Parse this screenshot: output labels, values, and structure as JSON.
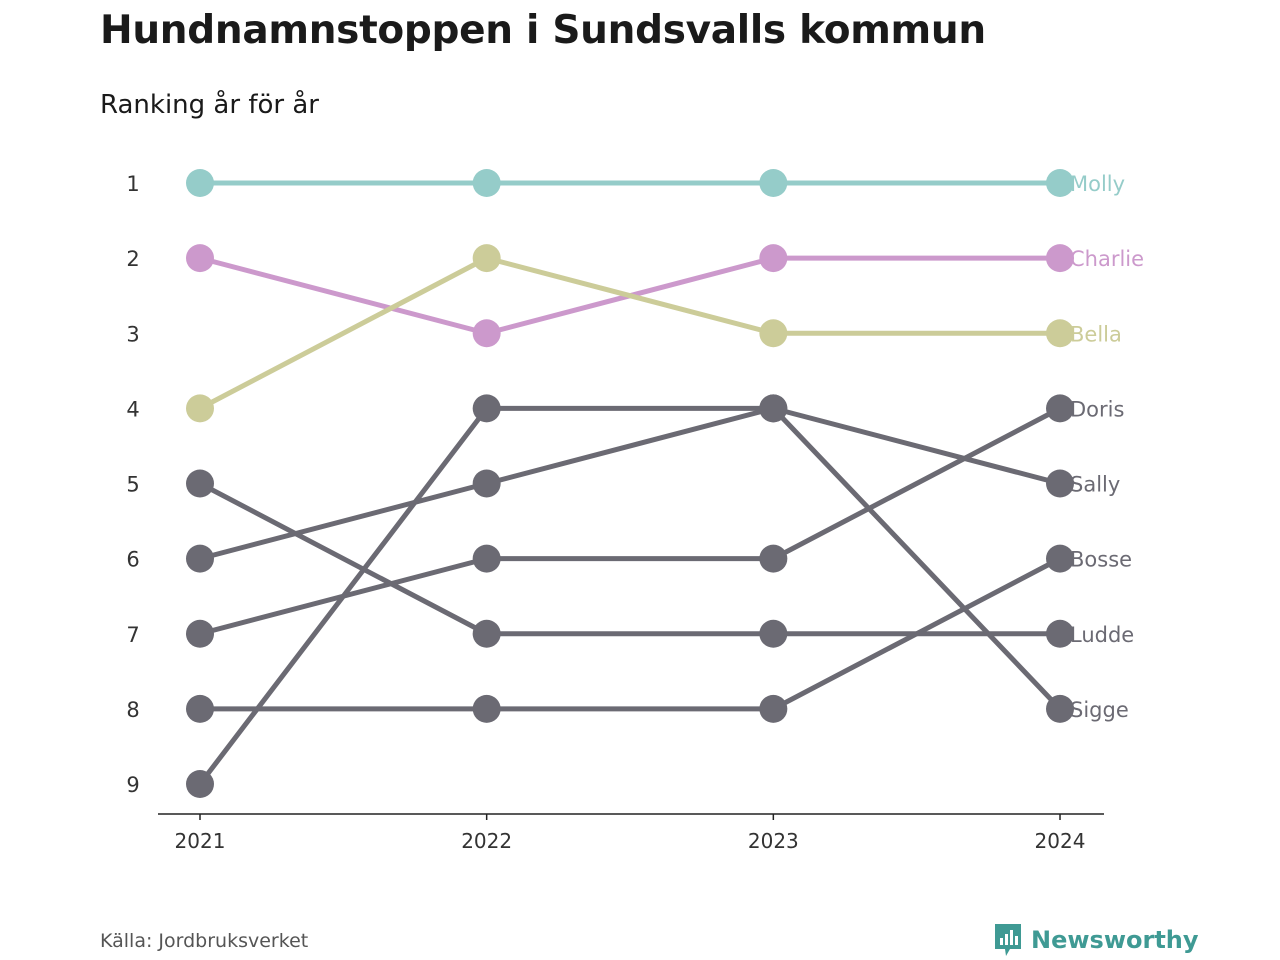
{
  "header": {
    "title": "Hundnamnstoppen i Sundsvalls kommun",
    "subtitle": "Ranking år för år"
  },
  "footer": {
    "source": "Källa: Jordbruksverket",
    "brand": "Newsworthy"
  },
  "colors": {
    "Molly": "#95ccc9",
    "Charlie": "#cc99cc",
    "Bella": "#cccc99",
    "other": "#6b6a73",
    "axis": "#222222",
    "text": "#333333",
    "brand": "#3f9a94"
  },
  "icons": {
    "brand": "bar-chart-badge-icon"
  },
  "chart_data": {
    "type": "line",
    "x": [
      "2021",
      "2022",
      "2023",
      "2024"
    ],
    "y_ticks": [
      1,
      2,
      3,
      4,
      5,
      6,
      7,
      8,
      9
    ],
    "ylim": [
      1,
      9
    ],
    "y_inverted": true,
    "title": "Hundnamnstoppen i Sundsvalls kommun",
    "subtitle": "Ranking år för år",
    "grid": false,
    "legend": "direct labels at right end of lines",
    "series": [
      {
        "name": "Molly",
        "values": [
          1,
          1,
          1,
          1
        ]
      },
      {
        "name": "Charlie",
        "values": [
          2,
          3,
          2,
          2
        ]
      },
      {
        "name": "Bella",
        "values": [
          4,
          2,
          3,
          3
        ]
      },
      {
        "name": "Doris",
        "values": [
          7,
          6,
          6,
          4
        ]
      },
      {
        "name": "Sally",
        "values": [
          6,
          5,
          4,
          5
        ]
      },
      {
        "name": "Bosse",
        "values": [
          8,
          8,
          8,
          6
        ]
      },
      {
        "name": "Ludde",
        "values": [
          5,
          7,
          7,
          7
        ]
      },
      {
        "name": "Sigge",
        "values": [
          9,
          4,
          4,
          8
        ]
      }
    ]
  }
}
